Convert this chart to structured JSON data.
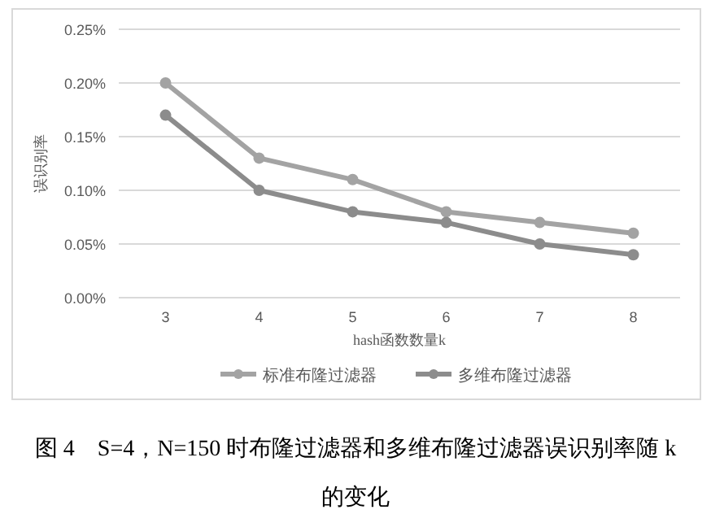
{
  "chart_data": {
    "type": "line",
    "ylabel": "误识别率",
    "xlabel": "hash函数数量k",
    "categories": [
      "3",
      "4",
      "5",
      "6",
      "7",
      "8"
    ],
    "series": [
      {
        "name": "标准布隆过滤器",
        "color": "#a3a3a3",
        "values": [
          0.2,
          0.13,
          0.11,
          0.08,
          0.07,
          0.06
        ]
      },
      {
        "name": "多维布隆过滤器",
        "color": "#8c8c8c",
        "values": [
          0.17,
          0.1,
          0.08,
          0.07,
          0.05,
          0.04
        ]
      }
    ],
    "ylim": [
      0,
      0.25
    ],
    "yticks": [
      {
        "value": 0,
        "label": "0.00%"
      },
      {
        "value": 0.05,
        "label": "0.05%"
      },
      {
        "value": 0.1,
        "label": "0.10%"
      },
      {
        "value": 0.15,
        "label": "0.15%"
      },
      {
        "value": 0.2,
        "label": "0.20%"
      },
      {
        "value": 0.25,
        "label": "0.25%"
      }
    ],
    "grid": "y",
    "legend": "bottom",
    "marker": "circle",
    "line_style": "solid",
    "annotations": [
      "图 4　S=4，N=150 时布隆过滤器和多维布隆过滤器误识别率随 k 的变化"
    ]
  }
}
